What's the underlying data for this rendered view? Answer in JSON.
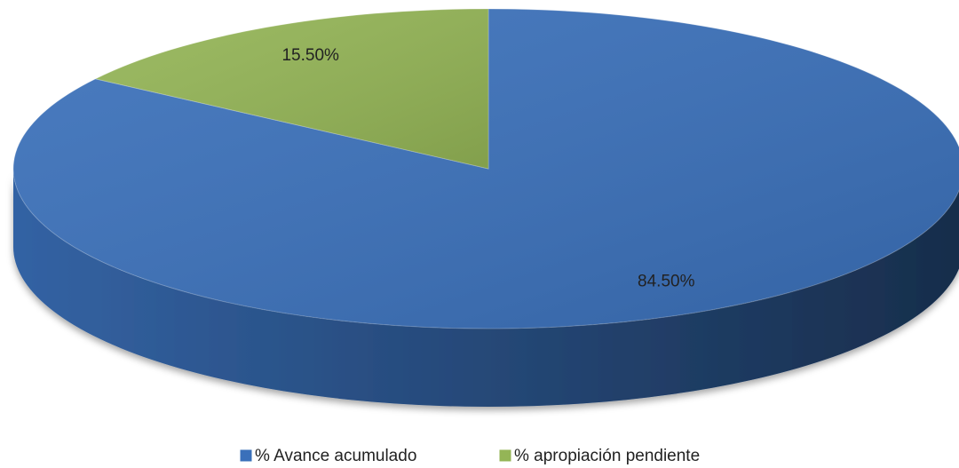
{
  "chart_data": {
    "type": "pie3d",
    "categories": [
      "% Avance acumulado",
      "% apropiación pendiente"
    ],
    "values": [
      84.5,
      15.5
    ],
    "value_labels": [
      "84.50%",
      "15.50%"
    ],
    "colors": [
      "#3a70ba",
      "#94b556"
    ],
    "legend": "bottom"
  }
}
